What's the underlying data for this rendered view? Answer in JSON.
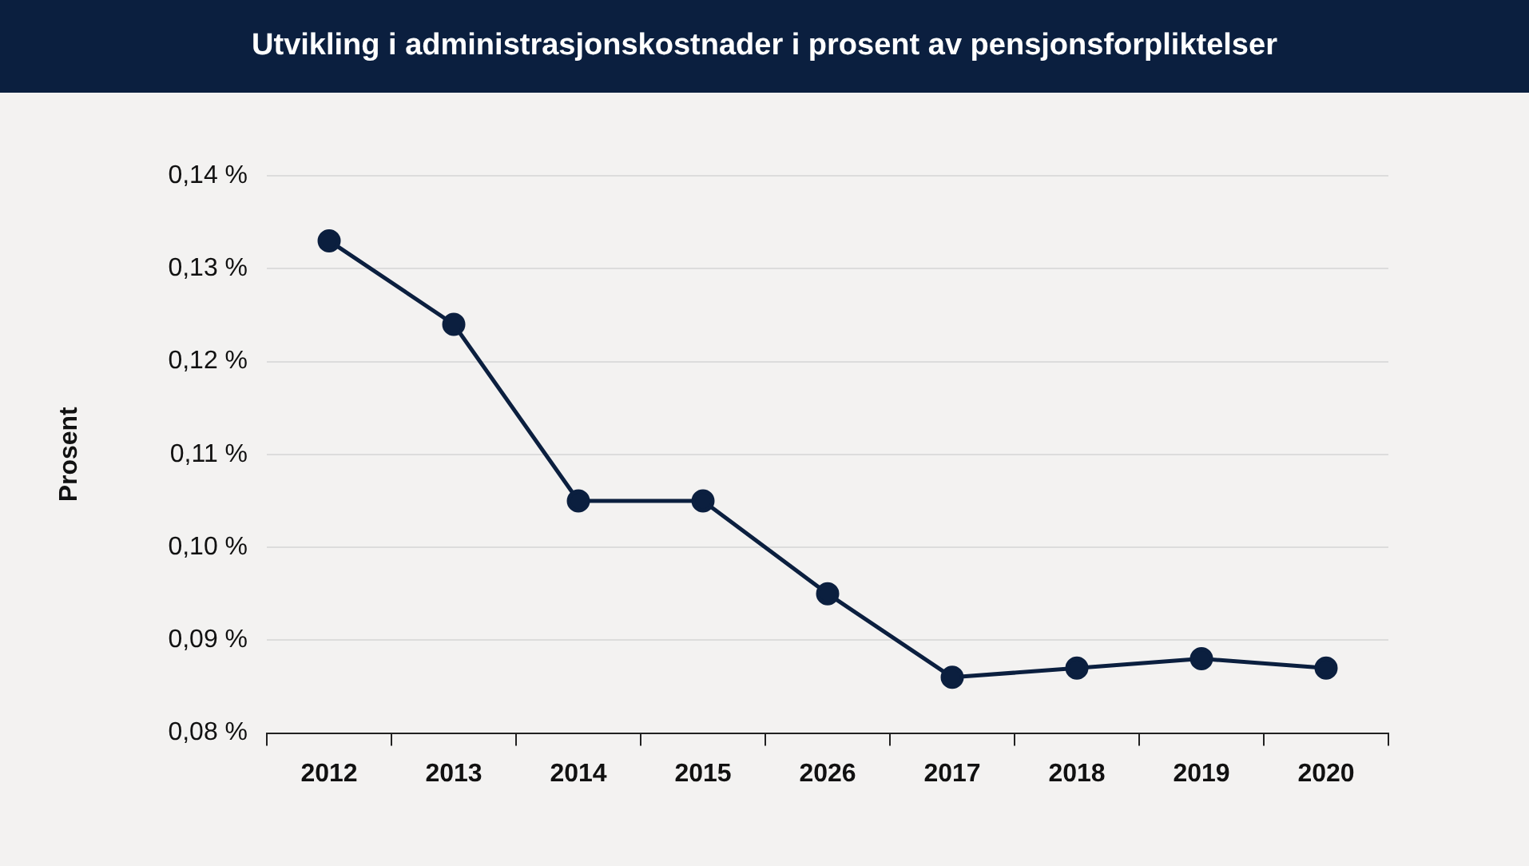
{
  "chart_data": {
    "type": "line",
    "title": "Utvikling i administrasjonskostnader i prosent av pensjonsforpliktelser",
    "ylabel": "Prosent",
    "categories": [
      "2012",
      "2013",
      "2014",
      "2015",
      "2026",
      "2017",
      "2018",
      "2019",
      "2020"
    ],
    "series": [
      {
        "color": "#0b1f3f",
        "values": [
          0.133,
          0.124,
          0.105,
          0.105,
          0.095,
          0.086,
          0.087,
          0.088,
          0.087
        ]
      }
    ],
    "ylim": [
      0.08,
      0.14
    ],
    "yticks": [
      {
        "value": 0.08,
        "label": "0,08 %"
      },
      {
        "value": 0.09,
        "label": "0,09 %"
      },
      {
        "value": 0.1,
        "label": "0,10 %"
      },
      {
        "value": 0.11,
        "label": "0,11 %"
      },
      {
        "value": 0.12,
        "label": "0,12 %"
      },
      {
        "value": 0.13,
        "label": "0,13 %"
      },
      {
        "value": 0.14,
        "label": "0,14 %"
      }
    ],
    "grid": "y",
    "legend": false,
    "marker": "circle",
    "line_style": "solid"
  }
}
